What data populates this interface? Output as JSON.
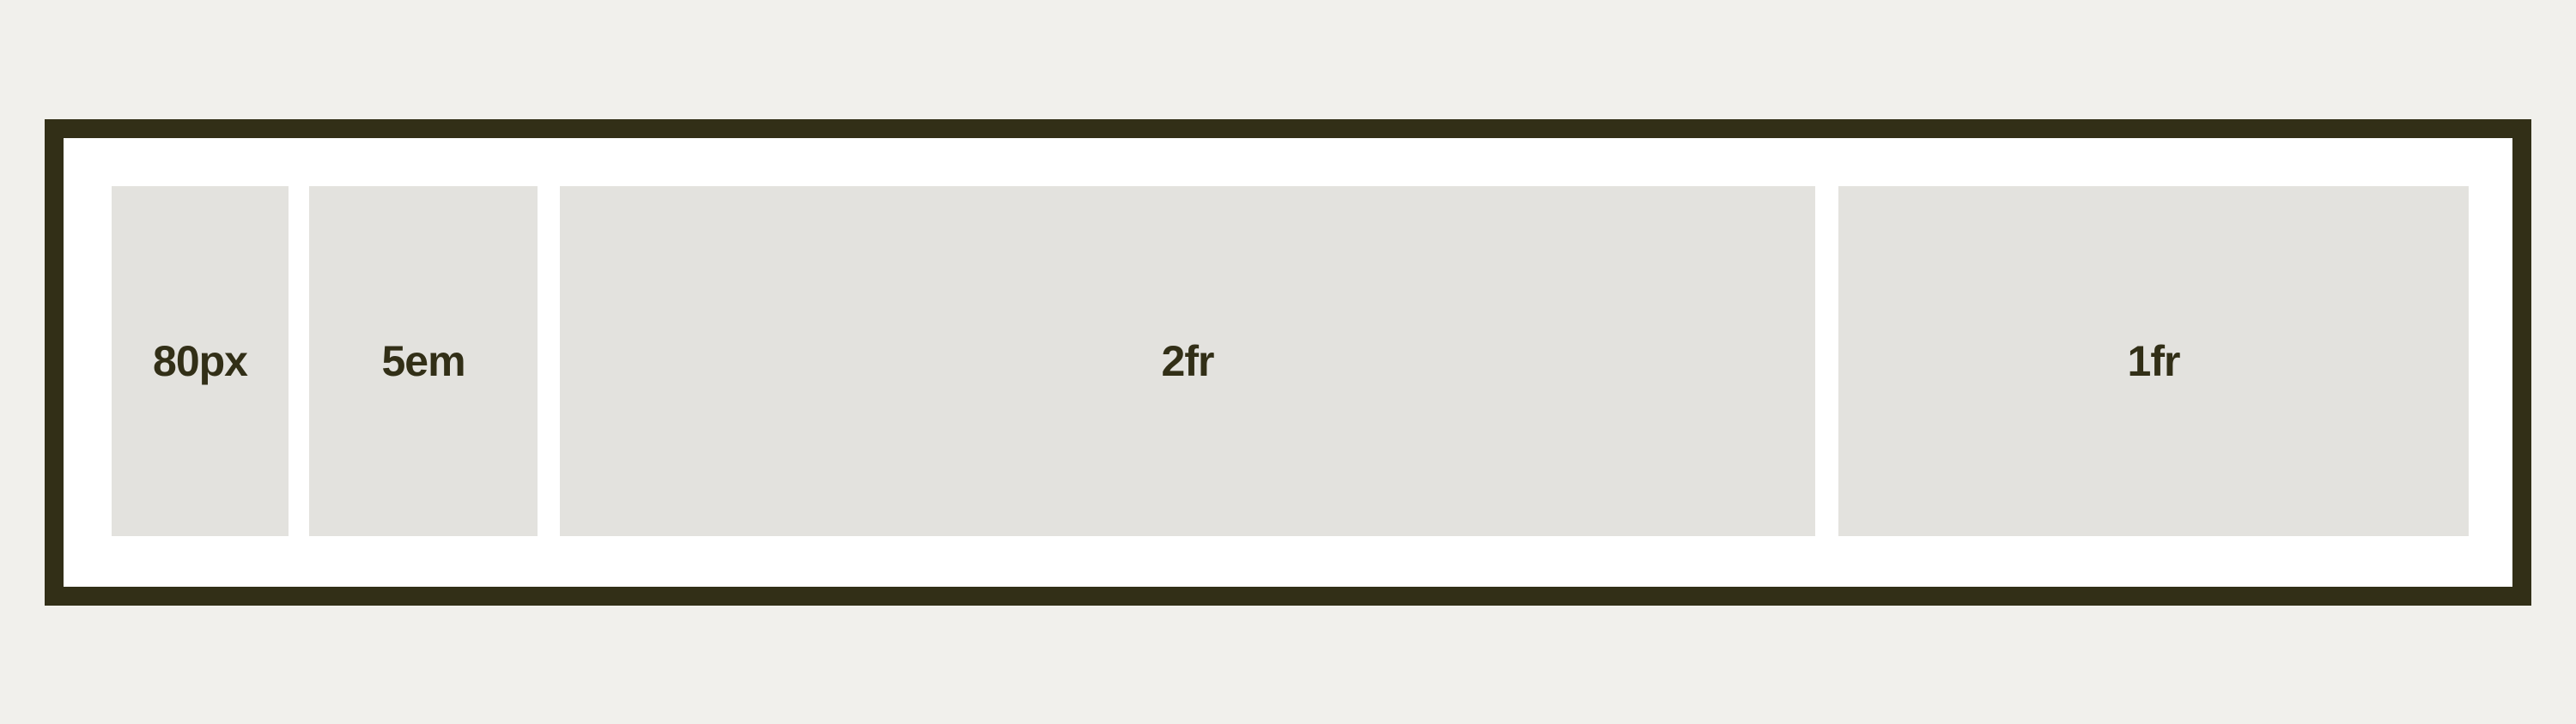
{
  "colors": {
    "page_background": "#f1f0ec",
    "frame_border": "#322f17",
    "frame_fill": "#ffffff",
    "cell_fill": "#e3e2de",
    "label_text": "#322f17"
  },
  "grid": {
    "columns": [
      {
        "label": "80px"
      },
      {
        "label": "5em"
      },
      {
        "label": "2fr"
      },
      {
        "label": "1fr"
      }
    ]
  }
}
